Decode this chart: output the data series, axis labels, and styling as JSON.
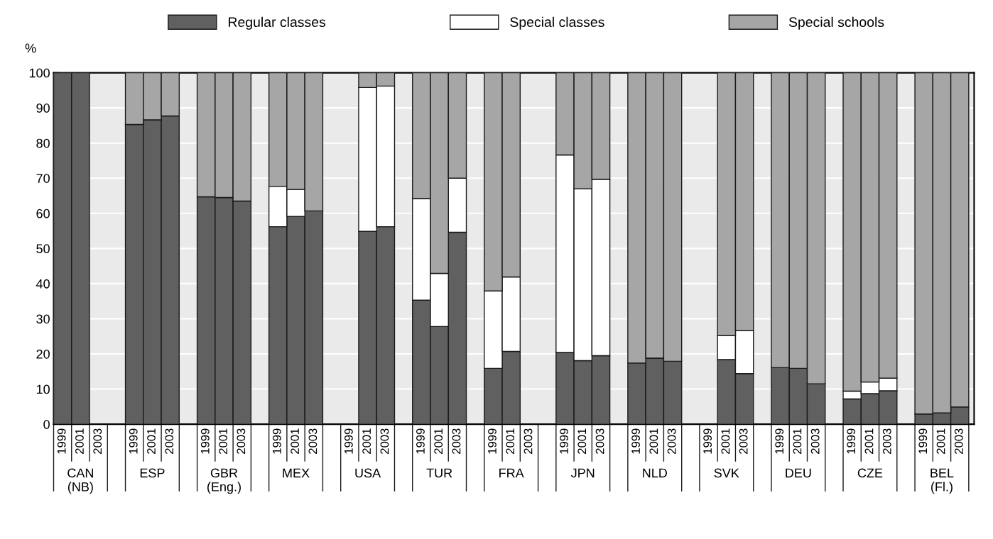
{
  "chart_data": {
    "type": "bar",
    "stacked": true,
    "ylabel": "%",
    "categories": [
      "1999",
      "2001",
      "2003",
      null,
      "1999",
      "2001",
      "2003",
      null,
      "1999",
      "2001",
      "2003",
      null,
      "1999",
      "2001",
      "2003",
      null,
      "1999",
      "2001",
      "2003",
      null,
      "1999",
      "2001",
      "2003",
      null,
      "1999",
      "2001",
      "2003",
      null,
      "1999",
      "2001",
      "2003",
      null,
      "1999",
      "2001",
      "2003",
      null,
      "1999",
      "2001",
      "2003",
      null,
      "1999",
      "2001",
      "2003",
      null,
      "1999",
      "2001",
      "2003",
      null,
      "1999",
      "2001",
      "2003"
    ],
    "annotations": [
      "CAN\n(NB)",
      "ESP",
      "GBR\n(Eng.)",
      "MEX",
      "USA",
      "TUR",
      "FRA",
      "JPN",
      "NLD",
      "SVK",
      "DEU",
      "CZE",
      "BEL\n(Fl.)"
    ],
    "series": [
      {
        "name": "Regular classes",
        "color": "#606060",
        "values": [
          100,
          100,
          null,
          null,
          85.3,
          86.6,
          87.7,
          null,
          64.7,
          64.5,
          63.5,
          null,
          56.2,
          59.1,
          60.7,
          null,
          null,
          54.9,
          56.2,
          null,
          35.3,
          27.8,
          54.6,
          null,
          15.9,
          20.7,
          null,
          null,
          20.4,
          18.1,
          19.5,
          null,
          17.4,
          18.8,
          17.9,
          null,
          null,
          18.4,
          14.4,
          null,
          16.1,
          15.9,
          11.5,
          null,
          7.2,
          8.7,
          9.5,
          null,
          2.9,
          3.2,
          4.9
        ]
      },
      {
        "name": "Special classes",
        "color": "#ffffff",
        "values": [
          null,
          null,
          null,
          null,
          null,
          null,
          null,
          null,
          null,
          null,
          null,
          null,
          11.5,
          7.7,
          null,
          null,
          null,
          40.9,
          40.0,
          null,
          28.9,
          15.1,
          15.4,
          null,
          22.0,
          21.2,
          null,
          null,
          56.2,
          48.9,
          50.2,
          null,
          null,
          null,
          null,
          null,
          null,
          6.8,
          12.2,
          null,
          null,
          null,
          null,
          null,
          2.2,
          3.3,
          3.6,
          null,
          null,
          null,
          null
        ]
      },
      {
        "name": "Special schools",
        "color": "#a6a6a6",
        "values": [
          null,
          null,
          null,
          null,
          14.7,
          13.4,
          12.3,
          null,
          35.3,
          35.5,
          36.5,
          null,
          32.3,
          33.2,
          39.3,
          null,
          null,
          4.2,
          3.8,
          null,
          35.8,
          57.1,
          30.0,
          null,
          62.1,
          58.1,
          null,
          null,
          23.4,
          33.0,
          30.3,
          null,
          82.6,
          81.2,
          82.1,
          null,
          null,
          74.8,
          73.4,
          null,
          83.9,
          84.1,
          88.5,
          null,
          90.6,
          88.0,
          86.9,
          null,
          97.1,
          96.8,
          95.1
        ]
      }
    ],
    "ylim": [
      0,
      100
    ],
    "yticks": [
      0,
      10,
      20,
      30,
      40,
      50,
      60,
      70,
      80,
      90,
      100
    ],
    "grid": "y",
    "legend": "top"
  }
}
